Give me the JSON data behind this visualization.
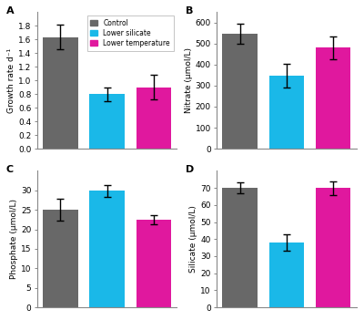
{
  "subplots": [
    {
      "label": "A",
      "ylabel": "Growth rate d⁻¹",
      "ylim": [
        0,
        2.0
      ],
      "yticks": [
        0.0,
        0.2,
        0.4,
        0.6,
        0.8,
        1.0,
        1.2,
        1.4,
        1.6,
        1.8
      ],
      "values": [
        1.63,
        0.8,
        0.9
      ],
      "errors": [
        0.18,
        0.1,
        0.18
      ]
    },
    {
      "label": "B",
      "ylabel": "Nitrate (μmol/L)",
      "ylim": [
        0,
        650
      ],
      "yticks": [
        0,
        100,
        200,
        300,
        400,
        500,
        600
      ],
      "values": [
        548,
        348,
        480
      ],
      "errors": [
        48,
        55,
        55
      ]
    },
    {
      "label": "C",
      "ylabel": "Phosphate (μmol/L)",
      "ylim": [
        0,
        35
      ],
      "yticks": [
        0,
        5,
        10,
        15,
        20,
        25,
        30
      ],
      "values": [
        25.1,
        29.9,
        22.4
      ],
      "errors": [
        2.8,
        1.5,
        1.2
      ]
    },
    {
      "label": "D",
      "ylabel": "Silicate (μmol/L)",
      "ylim": [
        0,
        80
      ],
      "yticks": [
        0,
        10,
        20,
        30,
        40,
        50,
        60,
        70
      ],
      "values": [
        70.0,
        38.0,
        70.0
      ],
      "errors": [
        3.0,
        5.0,
        4.0
      ]
    }
  ],
  "bar_colors": [
    "#686868",
    "#1ab8e8",
    "#e0189e"
  ],
  "legend_labels": [
    "Control",
    "Lower silicate",
    "Lower temperature"
  ],
  "bar_width": 0.75,
  "bar_positions": [
    0.5,
    1.5,
    2.5
  ],
  "xlim": [
    0,
    3.0
  ],
  "background_color": "#ffffff",
  "error_color": "black",
  "error_capsize": 3,
  "error_linewidth": 1.0
}
